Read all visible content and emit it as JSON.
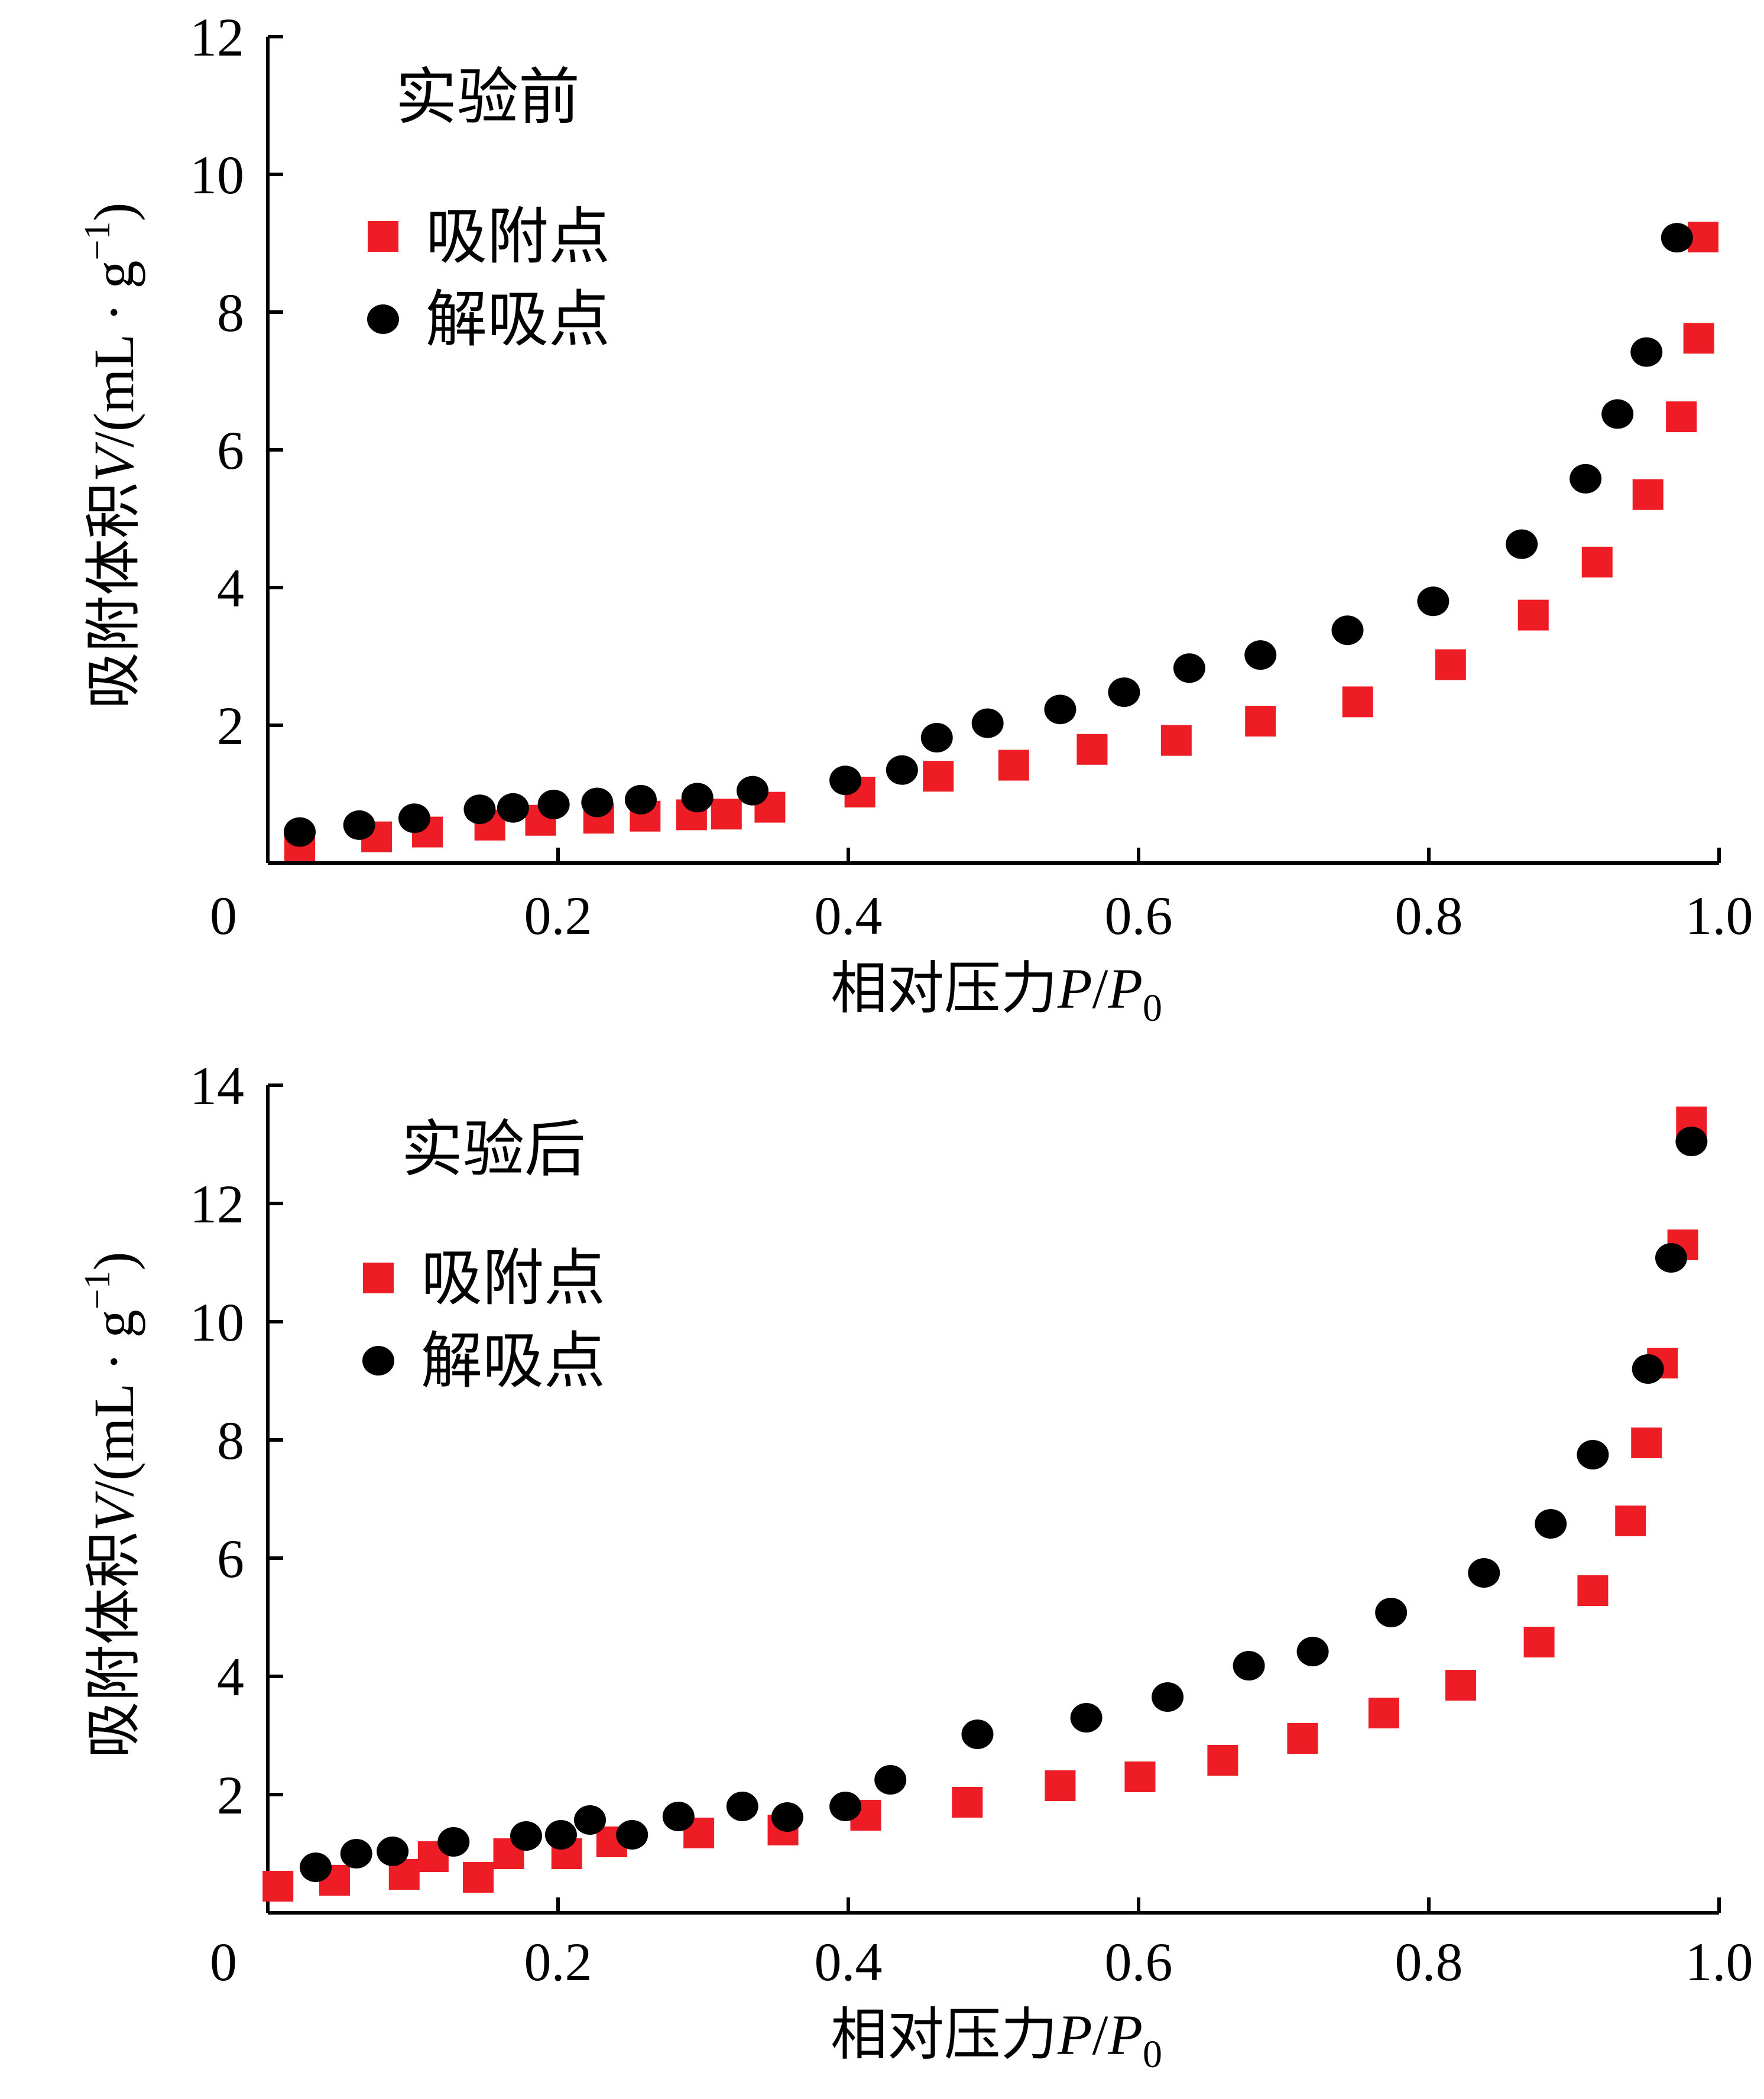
{
  "chart_data": [
    {
      "type": "scatter",
      "title": "实验前",
      "xlabel": {
        "prefix": "相对压力",
        "var": "P",
        "slash": "/",
        "var2": "P",
        "sub": "0"
      },
      "ylabel": {
        "prefix": "吸附体积",
        "var": "V",
        "unit_open": "/(mL · g",
        "sup": "−1",
        "unit_close": ")"
      },
      "xlim": [
        0,
        1.0
      ],
      "ylim": [
        0,
        12
      ],
      "x_ticks": [
        {
          "v": 0,
          "label": "0"
        },
        {
          "v": 0.2,
          "label": "0.2"
        },
        {
          "v": 0.4,
          "label": "0.4"
        },
        {
          "v": 0.6,
          "label": "0.6"
        },
        {
          "v": 0.8,
          "label": "0.8"
        },
        {
          "v": 1.0,
          "label": "1.0"
        }
      ],
      "y_ticks": [
        {
          "v": 2,
          "label": "2"
        },
        {
          "v": 4,
          "label": "4"
        },
        {
          "v": 6,
          "label": "6"
        },
        {
          "v": 8,
          "label": "8"
        },
        {
          "v": 10,
          "label": "10"
        },
        {
          "v": 12,
          "label": "12"
        }
      ],
      "legend_position": "top-left",
      "series": [
        {
          "name": "吸附点",
          "marker": "square",
          "color": "#ee1c25",
          "points": [
            [
              0.022,
              0.25
            ],
            [
              0.075,
              0.38
            ],
            [
              0.11,
              0.45
            ],
            [
              0.153,
              0.55
            ],
            [
              0.188,
              0.62
            ],
            [
              0.228,
              0.65
            ],
            [
              0.26,
              0.68
            ],
            [
              0.292,
              0.7
            ],
            [
              0.316,
              0.71
            ],
            [
              0.346,
              0.81
            ],
            [
              0.408,
              1.03
            ],
            [
              0.462,
              1.26
            ],
            [
              0.514,
              1.42
            ],
            [
              0.568,
              1.65
            ],
            [
              0.626,
              1.78
            ],
            [
              0.684,
              2.06
            ],
            [
              0.751,
              2.34
            ],
            [
              0.815,
              2.88
            ],
            [
              0.872,
              3.6
            ],
            [
              0.916,
              4.37
            ],
            [
              0.951,
              5.35
            ],
            [
              0.974,
              6.48
            ],
            [
              0.986,
              7.62
            ],
            [
              0.989,
              9.09
            ]
          ]
        },
        {
          "name": "解吸点",
          "marker": "circle",
          "color": "#000000",
          "points": [
            [
              0.022,
              0.45
            ],
            [
              0.063,
              0.55
            ],
            [
              0.101,
              0.65
            ],
            [
              0.146,
              0.78
            ],
            [
              0.169,
              0.8
            ],
            [
              0.197,
              0.85
            ],
            [
              0.227,
              0.88
            ],
            [
              0.257,
              0.92
            ],
            [
              0.296,
              0.95
            ],
            [
              0.334,
              1.05
            ],
            [
              0.398,
              1.2
            ],
            [
              0.437,
              1.35
            ],
            [
              0.461,
              1.82
            ],
            [
              0.496,
              2.03
            ],
            [
              0.546,
              2.23
            ],
            [
              0.59,
              2.48
            ],
            [
              0.635,
              2.83
            ],
            [
              0.684,
              3.02
            ],
            [
              0.744,
              3.38
            ],
            [
              0.803,
              3.8
            ],
            [
              0.864,
              4.63
            ],
            [
              0.908,
              5.58
            ],
            [
              0.93,
              6.52
            ],
            [
              0.95,
              7.42
            ],
            [
              0.971,
              9.08
            ]
          ]
        }
      ]
    },
    {
      "type": "scatter",
      "title": "实验后",
      "xlabel": {
        "prefix": "相对压力",
        "var": "P",
        "slash": "/",
        "var2": "P",
        "sub": "0"
      },
      "ylabel": {
        "prefix": "吸附体积",
        "var": "V",
        "unit_open": "/(mL · g",
        "sup": "−1",
        "unit_close": ")"
      },
      "xlim": [
        0,
        1.0
      ],
      "ylim": [
        0,
        14
      ],
      "x_ticks": [
        {
          "v": 0,
          "label": "0"
        },
        {
          "v": 0.2,
          "label": "0.2"
        },
        {
          "v": 0.4,
          "label": "0.4"
        },
        {
          "v": 0.6,
          "label": "0.6"
        },
        {
          "v": 0.8,
          "label": "0.8"
        },
        {
          "v": 1.0,
          "label": "1.0"
        }
      ],
      "y_ticks": [
        {
          "v": 2,
          "label": "2"
        },
        {
          "v": 4,
          "label": "4"
        },
        {
          "v": 6,
          "label": "6"
        },
        {
          "v": 8,
          "label": "8"
        },
        {
          "v": 10,
          "label": "10"
        },
        {
          "v": 12,
          "label": "12"
        },
        {
          "v": 14,
          "label": "14"
        }
      ],
      "legend_position": "top-left",
      "series": [
        {
          "name": "吸附点",
          "marker": "square",
          "color": "#ee1c25",
          "points": [
            [
              0.007,
              0.45
            ],
            [
              0.046,
              0.55
            ],
            [
              0.094,
              0.65
            ],
            [
              0.114,
              0.95
            ],
            [
              0.145,
              0.6
            ],
            [
              0.166,
              1.0
            ],
            [
              0.206,
              1.0
            ],
            [
              0.237,
              1.2
            ],
            [
              0.297,
              1.35
            ],
            [
              0.355,
              1.4
            ],
            [
              0.412,
              1.65
            ],
            [
              0.482,
              1.87
            ],
            [
              0.546,
              2.15
            ],
            [
              0.601,
              2.3
            ],
            [
              0.658,
              2.58
            ],
            [
              0.713,
              2.95
            ],
            [
              0.769,
              3.38
            ],
            [
              0.822,
              3.85
            ],
            [
              0.876,
              4.58
            ],
            [
              0.913,
              5.45
            ],
            [
              0.939,
              6.63
            ],
            [
              0.95,
              7.95
            ],
            [
              0.961,
              9.3
            ],
            [
              0.975,
              11.3
            ],
            [
              0.981,
              13.38
            ]
          ]
        },
        {
          "name": "解吸点",
          "marker": "circle",
          "color": "#000000",
          "points": [
            [
              0.033,
              0.77
            ],
            [
              0.061,
              1.0
            ],
            [
              0.086,
              1.04
            ],
            [
              0.128,
              1.2
            ],
            [
              0.178,
              1.3
            ],
            [
              0.202,
              1.32
            ],
            [
              0.222,
              1.57
            ],
            [
              0.251,
              1.32
            ],
            [
              0.283,
              1.63
            ],
            [
              0.327,
              1.8
            ],
            [
              0.358,
              1.62
            ],
            [
              0.398,
              1.8
            ],
            [
              0.429,
              2.25
            ],
            [
              0.489,
              3.02
            ],
            [
              0.564,
              3.3
            ],
            [
              0.62,
              3.65
            ],
            [
              0.676,
              4.18
            ],
            [
              0.72,
              4.42
            ],
            [
              0.774,
              5.08
            ],
            [
              0.838,
              5.75
            ],
            [
              0.884,
              6.58
            ],
            [
              0.913,
              7.75
            ],
            [
              0.951,
              9.2
            ],
            [
              0.967,
              11.08
            ],
            [
              0.981,
              13.05
            ]
          ]
        }
      ]
    }
  ]
}
